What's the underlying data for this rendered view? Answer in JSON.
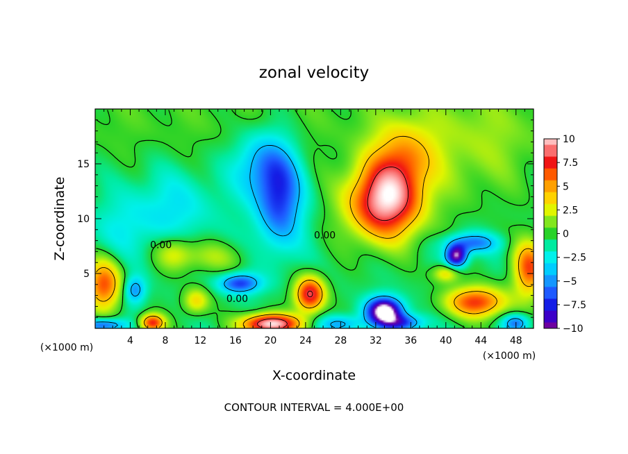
{
  "chart_data": {
    "type": "heatmap",
    "title": "zonal velocity",
    "xlabel": "X-coordinate",
    "ylabel": "Z-coordinate",
    "x_unit_left": "(×1000 m)",
    "x_unit_right": "(×1000 m)",
    "footer": "CONTOUR INTERVAL = 4.000E+00",
    "xlim": [
      0,
      50
    ],
    "ylim": [
      0,
      20
    ],
    "x_ticks": [
      4,
      8,
      12,
      16,
      20,
      24,
      28,
      32,
      36,
      40,
      44,
      48
    ],
    "y_ticks": [
      5,
      10,
      15
    ],
    "colorbar": {
      "min": -10,
      "max": 10,
      "ticks": [
        10,
        7.5,
        5,
        2.5,
        0,
        -2.5,
        -5,
        -7.5,
        -10
      ],
      "tick_labels": [
        "10",
        "7.5",
        "5",
        "2.5",
        "0",
        "−2.5",
        "−5",
        "−7.5",
        "−10"
      ]
    },
    "contour_labels": [
      {
        "text": "0.00",
        "x": 7.5,
        "z": 7.3
      },
      {
        "text": "0.00",
        "x": 16.2,
        "z": 2.4
      },
      {
        "text": "0.00",
        "x": 26.2,
        "z": 8.2
      }
    ],
    "features": [
      {
        "label": "jet-core-positive",
        "x": 33,
        "z": 11.5,
        "value": 10
      },
      {
        "label": "upper-negative-tongue",
        "x": 21,
        "z": 12,
        "value": -7
      },
      {
        "label": "near-surface-positive",
        "x": 20,
        "z": 0.5,
        "value": 11
      },
      {
        "label": "low-level-positive",
        "x": 24.5,
        "z": 3,
        "value": 8
      },
      {
        "label": "surface-negative",
        "x": 33,
        "z": 1.5,
        "value": -11
      },
      {
        "label": "right-negative-pocket",
        "x": 41,
        "z": 7,
        "value": -9
      },
      {
        "label": "left-positive",
        "x": 1,
        "z": 4,
        "value": 7
      },
      {
        "label": "right-positive",
        "x": 43.5,
        "z": 2.5,
        "value": 7
      },
      {
        "label": "right-edge-positive",
        "x": 49.5,
        "z": 5,
        "value": 7
      },
      {
        "label": "mid-negative",
        "x": 16.5,
        "z": 4,
        "value": -6
      }
    ]
  }
}
